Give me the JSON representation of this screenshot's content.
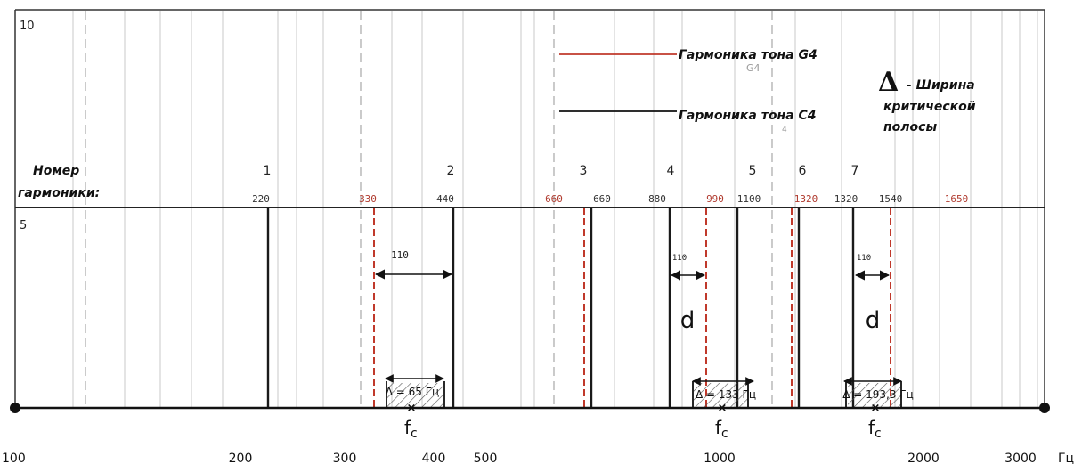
{
  "colors": {
    "c4_harmonic": "#1a1a1a",
    "g4_harmonic": "#c0392b",
    "red_label": "#b03a2e",
    "grid": "#c8c8c8",
    "dashed_grid": "#a8a8a8",
    "frame": "#333333"
  },
  "panel_labels": {
    "upper": "10",
    "lower": "5"
  },
  "legend": {
    "g4_label": "Гармоника тона G4",
    "c4_label": "Гармоника тона C4",
    "delta_symbol": "Δ",
    "delta_desc_1": "- Ширина",
    "delta_desc_2": "критической",
    "delta_desc_3": "полосы",
    "ghost_1": "G4",
    "ghost_2": "4"
  },
  "harmonic_row": {
    "title_1": "Номер",
    "title_2": "гармоники:",
    "numbers": [
      "1",
      "2",
      "3",
      "4",
      "5",
      "6",
      "7"
    ]
  },
  "harmonics": {
    "c4_freqs": [
      220,
      440,
      660,
      880,
      1100,
      1320,
      1540
    ],
    "g4_freqs": [
      330,
      660,
      990,
      1320,
      1650
    ],
    "c4_labels": [
      "220",
      "440",
      "660",
      "880",
      "1100",
      "1320",
      "1540"
    ],
    "g4_labels": [
      "330",
      "660",
      "990",
      "1320",
      "1650"
    ]
  },
  "intervals": [
    {
      "label": "110",
      "style": "large"
    },
    {
      "label": "110",
      "style": "small"
    },
    {
      "label": "110",
      "style": "small"
    }
  ],
  "d_labels": [
    "d",
    "d"
  ],
  "critical_bands": [
    {
      "label": "Δ = 65 Гц"
    },
    {
      "label": "Δ = 133 Гц"
    },
    {
      "label": "Δ = 193,3 Гц"
    }
  ],
  "fc_symbol": "f",
  "fc_subscript": "c",
  "x_axis": {
    "scale": "log",
    "range": [
      100,
      3000
    ],
    "ticks": [
      "100",
      "200",
      "300",
      "400",
      "500",
      "1000",
      "2000",
      "3000"
    ],
    "unit": "Гц"
  }
}
